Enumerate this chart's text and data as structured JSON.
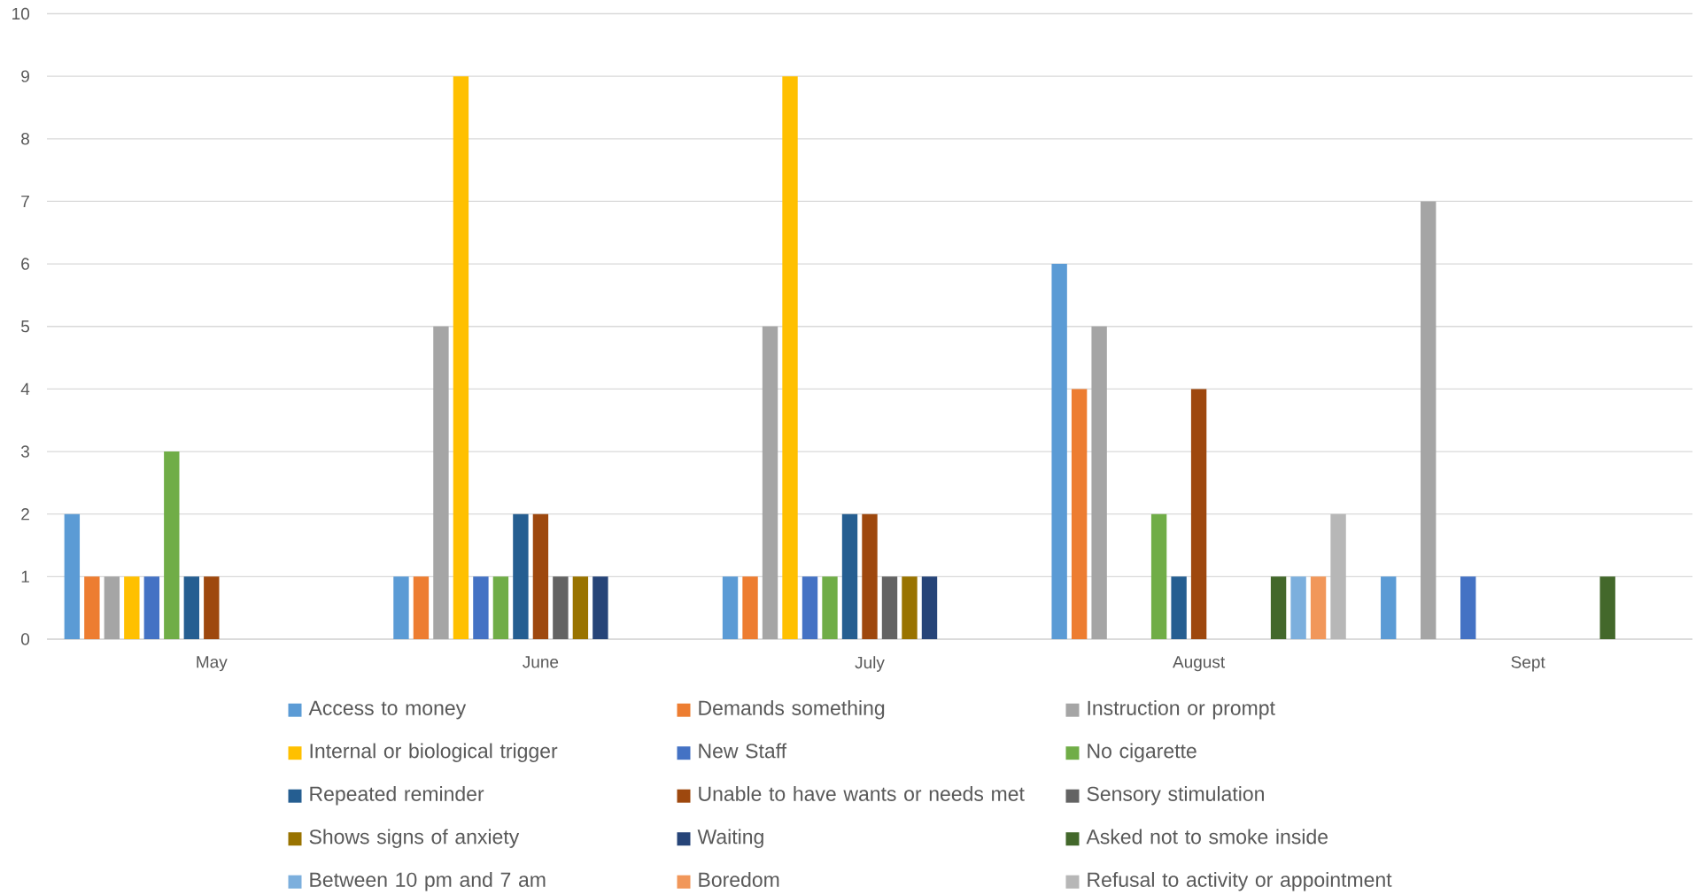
{
  "chart_data": {
    "type": "bar",
    "categories": [
      "May",
      "June",
      "July",
      "August",
      "Sept"
    ],
    "series": [
      {
        "name": "Access to money",
        "color": "#5b9bd5",
        "values": [
          2,
          1,
          1,
          6,
          1
        ]
      },
      {
        "name": "Demands something",
        "color": "#ed7d31",
        "values": [
          1,
          1,
          1,
          4,
          0
        ]
      },
      {
        "name": "Instruction or prompt",
        "color": "#a5a5a5",
        "values": [
          1,
          5,
          5,
          5,
          7
        ]
      },
      {
        "name": "Internal or biological trigger",
        "color": "#ffc000",
        "values": [
          1,
          9,
          9,
          0,
          0
        ]
      },
      {
        "name": "New Staff",
        "color": "#4472c4",
        "values": [
          1,
          1,
          1,
          0,
          1
        ]
      },
      {
        "name": "No cigarette",
        "color": "#70ad47",
        "values": [
          3,
          1,
          1,
          2,
          0
        ]
      },
      {
        "name": "Repeated reminder",
        "color": "#255e91",
        "values": [
          1,
          2,
          2,
          1,
          0
        ]
      },
      {
        "name": "Unable to have wants or needs met",
        "color": "#9e480e",
        "values": [
          1,
          2,
          2,
          4,
          0
        ]
      },
      {
        "name": "Sensory stimulation",
        "color": "#636363",
        "values": [
          0,
          1,
          1,
          0,
          0
        ]
      },
      {
        "name": "Shows signs of anxiety",
        "color": "#997300",
        "values": [
          0,
          1,
          1,
          0,
          0
        ]
      },
      {
        "name": "Waiting",
        "color": "#264478",
        "values": [
          0,
          1,
          1,
          0,
          0
        ]
      },
      {
        "name": "Asked not to smoke inside",
        "color": "#43682b",
        "values": [
          0,
          0,
          0,
          1,
          1
        ]
      },
      {
        "name": "Between 10 pm and 7 am",
        "color": "#7cafdd",
        "values": [
          0,
          0,
          0,
          1,
          0
        ]
      },
      {
        "name": "Boredom",
        "color": "#f1975a",
        "values": [
          0,
          0,
          0,
          1,
          0
        ]
      },
      {
        "name": "Refusal to activity or appointment",
        "color": "#b7b7b7",
        "values": [
          0,
          0,
          0,
          2,
          0
        ]
      }
    ],
    "ylim": [
      0,
      10
    ],
    "yticks": [
      0,
      1,
      2,
      3,
      4,
      5,
      6,
      7,
      8,
      9,
      10
    ],
    "grid": "y",
    "legend": "bottom"
  }
}
